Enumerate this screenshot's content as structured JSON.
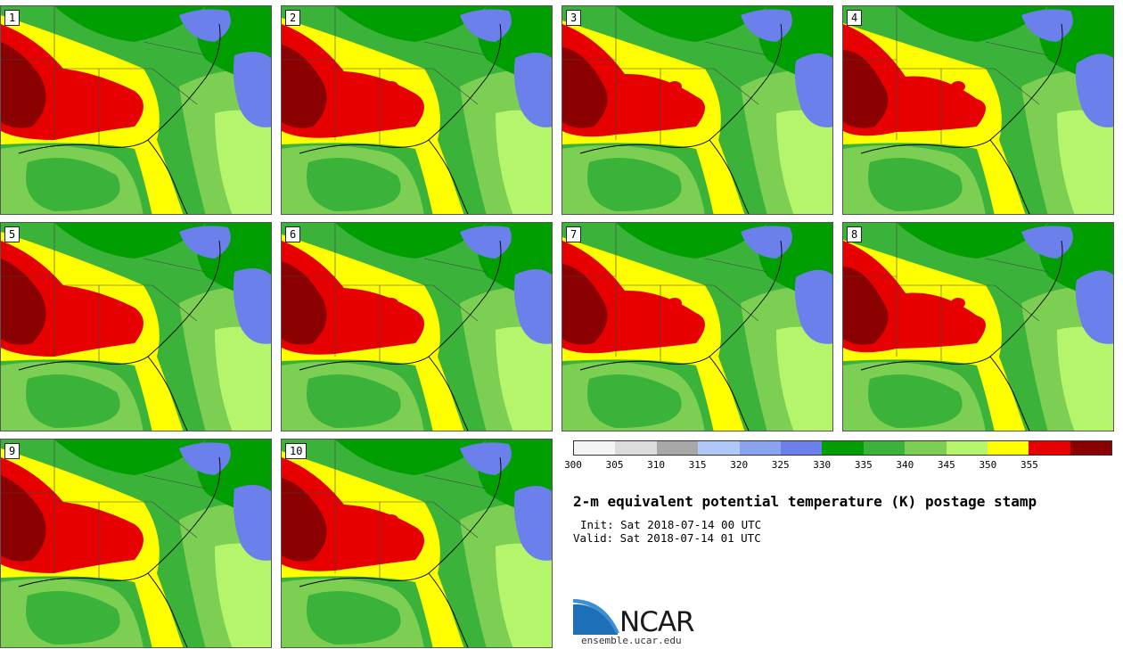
{
  "title": "2-m equivalent potential temperature (K) postage stamp",
  "init": "Init: Sat 2018-07-14 00 UTC",
  "valid": "Valid: Sat 2018-07-14 01 UTC",
  "website": "ensemble.ucar.edu",
  "brand": "NCAR",
  "members": [
    "1",
    "2",
    "3",
    "4",
    "5",
    "6",
    "7",
    "8",
    "9",
    "10"
  ],
  "colorbar": {
    "ticks": [
      "300",
      "305",
      "310",
      "315",
      "320",
      "325",
      "330",
      "335",
      "340",
      "345",
      "350",
      "355"
    ],
    "colors": [
      "#f4f4f4",
      "#dcdcdc",
      "#a8a8a8",
      "#b0c8f8",
      "#8aa2f0",
      "#6b80ea",
      "#009e00",
      "#3bb33b",
      "#7ccf52",
      "#b5f56b",
      "#ffff00",
      "#e60000",
      "#8b0000"
    ]
  },
  "palette": {
    "dark_green": "#009e00",
    "green": "#3bb33b",
    "light_green": "#7ccf52",
    "pale_green": "#b5f56b",
    "yellow": "#ffff00",
    "red": "#e60000",
    "dark_red": "#8b0000",
    "blue": "#6b80ea",
    "light_blue": "#8aa2f0"
  }
}
